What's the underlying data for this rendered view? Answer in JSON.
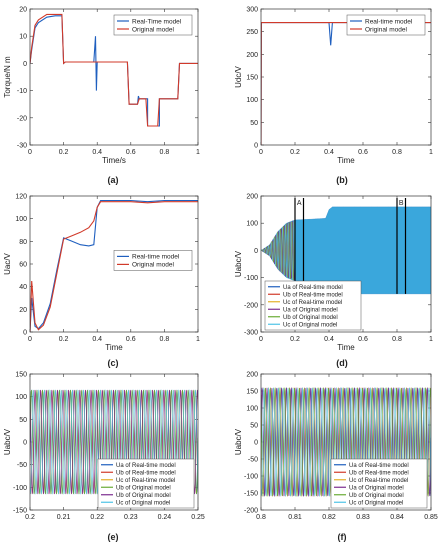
{
  "chart_data": [
    {
      "id": "a",
      "type": "line",
      "panel_label": "(a)",
      "xlabel": "Time/s",
      "ylabel": "Torque/N m",
      "xlim": [
        0,
        1
      ],
      "ylim": [
        -30,
        20
      ],
      "xticks": [
        "0",
        "0.2",
        "0.4",
        "0.6",
        "0.8",
        "1"
      ],
      "yticks": [
        "-30",
        "-20",
        "-10",
        "0",
        "10",
        "20"
      ],
      "legend_position": "top-right",
      "series": [
        {
          "name": "Real-Time model",
          "color": "#1f5fbf",
          "x": [
            0,
            0.01,
            0.03,
            0.05,
            0.1,
            0.15,
            0.19,
            0.2,
            0.21,
            0.38,
            0.39,
            0.395,
            0.4,
            0.41,
            0.58,
            0.59,
            0.6,
            0.62,
            0.64,
            0.645,
            0.65,
            0.68,
            0.69,
            0.7,
            0.7,
            0.75,
            0.76,
            0.77,
            0.77,
            0.86,
            0.87,
            0.88,
            0.89,
            1.0
          ],
          "y": [
            0,
            5,
            13,
            15,
            17,
            17.5,
            17.5,
            0,
            0.5,
            0.5,
            10,
            -10,
            0.5,
            0.5,
            0.5,
            -15,
            -15,
            -15,
            -15,
            -12,
            -13,
            -13,
            -13,
            -13,
            -23,
            -23,
            -23,
            -23,
            -13,
            -13,
            -13,
            -13,
            0,
            0
          ]
        },
        {
          "name": "Original model",
          "color": "#d13a2a",
          "x": [
            0,
            0.01,
            0.03,
            0.05,
            0.1,
            0.15,
            0.19,
            0.2,
            0.21,
            0.38,
            0.4,
            0.41,
            0.58,
            0.59,
            0.6,
            0.64,
            0.65,
            0.69,
            0.7,
            0.76,
            0.77,
            0.87,
            0.88,
            0.89,
            1.0
          ],
          "y": [
            0,
            6,
            14,
            16,
            18,
            18,
            18,
            0,
            0.5,
            0.5,
            0.5,
            0.5,
            0.5,
            -15,
            -15,
            -15,
            -13,
            -13,
            -23,
            -23,
            -13,
            -13,
            -13,
            0,
            0
          ]
        }
      ]
    },
    {
      "id": "b",
      "type": "line",
      "panel_label": "(b)",
      "xlabel": "Time",
      "ylabel": "Udc/V",
      "xlim": [
        0,
        1
      ],
      "ylim": [
        0,
        300
      ],
      "xticks": [
        "0",
        "0.2",
        "0.4",
        "0.6",
        "0.8",
        "1"
      ],
      "yticks": [
        "0",
        "50",
        "100",
        "150",
        "200",
        "250",
        "300"
      ],
      "legend_position": "top-right",
      "series": [
        {
          "name": "Real-time model",
          "color": "#1f5fbf",
          "x": [
            0,
            0.002,
            0.004,
            0.2,
            0.4,
            0.41,
            0.42,
            0.6,
            0.8,
            1.0
          ],
          "y": [
            0,
            270,
            270,
            270,
            270,
            220,
            270,
            270,
            270,
            270
          ]
        },
        {
          "name": "Original model",
          "color": "#d13a2a",
          "x": [
            0,
            0.002,
            0.004,
            0.2,
            0.4,
            0.6,
            0.88,
            0.89,
            0.9,
            1.0
          ],
          "y": [
            0,
            270,
            270,
            270,
            270,
            270,
            270,
            278,
            270,
            270
          ]
        }
      ]
    },
    {
      "id": "c",
      "type": "line",
      "panel_label": "(c)",
      "xlabel": "Time",
      "ylabel": "Uac/V",
      "xlim": [
        0,
        1
      ],
      "ylim": [
        0,
        120
      ],
      "xticks": [
        "0",
        "0.2",
        "0.4",
        "0.6",
        "0.8",
        "1"
      ],
      "yticks": [
        "0",
        "20",
        "40",
        "60",
        "80",
        "100",
        "120"
      ],
      "legend_position": "center-right",
      "series": [
        {
          "name": "Real-time model",
          "color": "#1f5fbf",
          "x": [
            0,
            0.01,
            0.03,
            0.05,
            0.08,
            0.12,
            0.16,
            0.2,
            0.25,
            0.3,
            0.35,
            0.38,
            0.4,
            0.42,
            0.6,
            0.7,
            0.8,
            1.0
          ],
          "y": [
            0,
            30,
            5,
            3,
            8,
            25,
            55,
            83,
            80,
            77,
            76,
            77,
            110,
            116,
            116,
            115,
            116,
            116
          ]
        },
        {
          "name": "Original model",
          "color": "#d13a2a",
          "x": [
            0,
            0.01,
            0.03,
            0.05,
            0.08,
            0.12,
            0.16,
            0.2,
            0.25,
            0.3,
            0.35,
            0.38,
            0.4,
            0.42,
            0.6,
            0.7,
            0.8,
            1.0
          ],
          "y": [
            0,
            45,
            8,
            2,
            6,
            22,
            52,
            82,
            85,
            88,
            92,
            98,
            110,
            115,
            115,
            114,
            115,
            115
          ]
        }
      ]
    },
    {
      "id": "d",
      "type": "line",
      "panel_label": "(d)",
      "xlabel": "Time",
      "ylabel": "Uabc/V",
      "xlim": [
        0,
        1
      ],
      "ylim": [
        -300,
        200
      ],
      "xticks": [
        "0",
        "0.2",
        "0.4",
        "0.6",
        "0.8",
        "1"
      ],
      "yticks": [
        "-300",
        "-200",
        "-100",
        "0",
        "100",
        "200"
      ],
      "legend_position": "bottom-left",
      "annotations": [
        "A",
        "B"
      ],
      "envelope_time": [
        0,
        0.05,
        0.1,
        0.15,
        0.2,
        0.3,
        0.38,
        0.4,
        0.42,
        1.0
      ],
      "envelope_amplitude": [
        0,
        20,
        70,
        100,
        112,
        115,
        118,
        150,
        160,
        160
      ],
      "series": [
        {
          "name": "Ua of Real-time model",
          "color": "#1f5fbf"
        },
        {
          "name": "Ub of Real-time model",
          "color": "#d13a2a"
        },
        {
          "name": "Uc of Real-time model",
          "color": "#e3b02a"
        },
        {
          "name": "Ua of Original model",
          "color": "#7c2d8f"
        },
        {
          "name": "Ub of Original model",
          "color": "#6aab35"
        },
        {
          "name": "Uc of Original model",
          "color": "#4ec3e6"
        }
      ]
    },
    {
      "id": "e",
      "type": "line",
      "panel_label": "(e)",
      "xlabel": "",
      "ylabel": "Uabc/V",
      "xlim": [
        0.2,
        0.25
      ],
      "ylim": [
        -150,
        150
      ],
      "xticks": [
        "0.2",
        "0.21",
        "0.22",
        "0.23",
        "0.24",
        "0.25"
      ],
      "yticks": [
        "-150",
        "-100",
        "-50",
        "0",
        "50",
        "100",
        "150"
      ],
      "legend_position": "bottom-right",
      "amplitude": 115,
      "frequency_hz": 600,
      "series": [
        {
          "name": "Ua of Real-time model",
          "color": "#1f5fbf"
        },
        {
          "name": "Ub of Real-time model",
          "color": "#d13a2a"
        },
        {
          "name": "Uc of Real-time model",
          "color": "#e3b02a"
        },
        {
          "name": "Ub of Original model",
          "color": "#6aab35"
        },
        {
          "name": "Ub of Original model",
          "color": "#7c2d8f"
        },
        {
          "name": "Uc of Original model",
          "color": "#4ec3e6"
        }
      ]
    },
    {
      "id": "f",
      "type": "line",
      "panel_label": "(f)",
      "xlabel": "",
      "ylabel": "Uabc/V",
      "xlim": [
        0.8,
        0.85
      ],
      "ylim": [
        -200,
        200
      ],
      "xticks": [
        "0.8",
        "0.81",
        "0.82",
        "0.83",
        "0.84",
        "0.85"
      ],
      "yticks": [
        "-200",
        "-150",
        "-100",
        "-50",
        "0",
        "50",
        "100",
        "150",
        "200"
      ],
      "legend_position": "bottom-right",
      "amplitude": 160,
      "frequency_hz": 700,
      "series": [
        {
          "name": "Ua of Real-time model",
          "color": "#1f5fbf"
        },
        {
          "name": "Ub of Real-time model",
          "color": "#d13a2a"
        },
        {
          "name": "Uc of Real-time model",
          "color": "#e3b02a"
        },
        {
          "name": "Ua of Original model",
          "color": "#7c2d8f"
        },
        {
          "name": "Ub of Original model",
          "color": "#6aab35"
        },
        {
          "name": "Uc of Original model",
          "color": "#4ec3e6"
        }
      ]
    }
  ]
}
